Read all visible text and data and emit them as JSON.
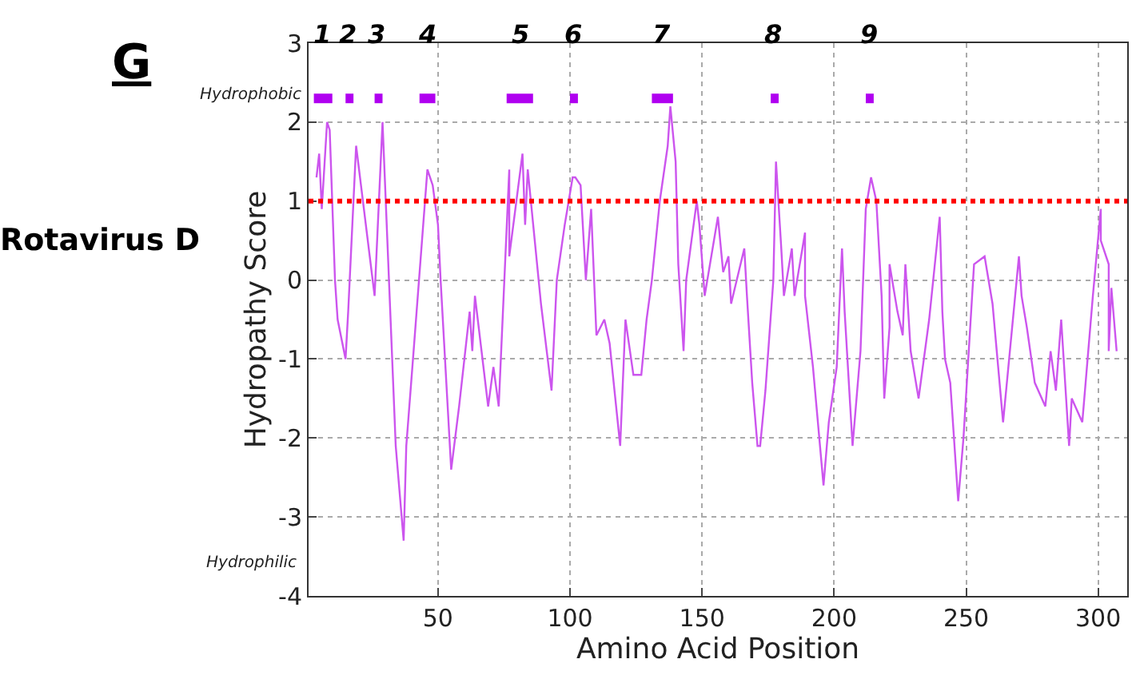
{
  "chart_data": {
    "type": "line",
    "title": "Rotavirus D",
    "xlabel": "Amino Acid Position",
    "ylabel": "Hydropathy Score",
    "annotations": [
      "G",
      "Hydrophobic",
      "Hydrophilic",
      {
        "text": "1",
        "x": 6,
        "y": 2.3
      },
      {
        "text": "2",
        "x": 16,
        "y": 2.3
      },
      {
        "text": "3",
        "x": 27,
        "y": 2.3
      },
      {
        "text": "4",
        "x": 46,
        "y": 2.3
      },
      {
        "text": "5",
        "x": 81,
        "y": 2.3
      },
      {
        "text": "6",
        "x": 101,
        "y": 2.3
      },
      {
        "text": "7",
        "x": 135,
        "y": 2.3
      },
      {
        "text": "8",
        "x": 177,
        "y": 2.3
      },
      {
        "text": "9",
        "x": 213,
        "y": 2.3
      }
    ],
    "series": [
      {
        "color": "#cc55ee",
        "x": [
          4,
          5,
          6,
          8,
          9,
          11,
          12,
          15,
          16,
          19,
          26,
          29,
          34,
          37,
          38,
          41,
          46,
          48,
          50,
          51,
          55,
          58,
          62,
          63,
          64,
          69,
          71,
          73,
          77,
          77,
          82,
          83,
          84,
          89,
          93,
          95,
          98,
          101,
          102,
          104,
          106,
          108,
          110,
          113,
          115,
          119,
          121,
          124,
          127,
          129,
          131,
          134,
          137,
          138,
          140,
          141,
          143,
          144,
          148,
          149,
          151,
          156,
          158,
          160,
          161,
          166,
          167,
          169,
          171,
          172,
          174,
          177,
          178,
          180,
          181,
          184,
          185,
          189,
          189,
          192,
          196,
          198,
          201,
          203,
          204,
          207,
          210,
          212,
          214,
          216,
          218,
          219,
          221,
          221,
          224,
          226,
          227,
          229,
          232,
          236,
          240,
          241,
          242,
          244,
          247,
          249,
          251,
          253,
          257,
          258,
          260,
          264,
          266,
          270,
          271,
          273,
          276,
          280,
          282,
          284,
          286,
          289,
          290,
          294,
          296,
          298,
          301,
          301,
          304,
          304,
          305,
          307
        ],
        "values": [
          1.3,
          1.6,
          0.9,
          2.0,
          1.9,
          0.0,
          -0.5,
          -1.0,
          -0.4,
          1.7,
          -0.2,
          2.0,
          -2.1,
          -3.3,
          -2.1,
          -0.8,
          1.4,
          1.2,
          0.7,
          0.0,
          -2.4,
          -1.6,
          -0.4,
          -0.9,
          -0.2,
          -1.6,
          -1.1,
          -1.6,
          1.4,
          0.3,
          1.6,
          0.7,
          1.4,
          -0.3,
          -1.4,
          0.0,
          0.7,
          1.3,
          1.3,
          1.2,
          0.0,
          0.9,
          -0.7,
          -0.5,
          -0.8,
          -2.1,
          -0.5,
          -1.2,
          -1.2,
          -0.5,
          0.0,
          1.0,
          1.7,
          2.2,
          1.5,
          0.2,
          -0.9,
          0.0,
          1.0,
          0.7,
          -0.2,
          0.8,
          0.1,
          0.3,
          -0.3,
          0.4,
          -0.2,
          -1.3,
          -2.1,
          -2.1,
          -1.4,
          0.0,
          1.5,
          0.4,
          -0.2,
          0.4,
          -0.2,
          0.6,
          -0.2,
          -1.1,
          -2.6,
          -1.8,
          -1.1,
          0.4,
          -0.4,
          -2.1,
          -0.9,
          0.9,
          1.3,
          1.0,
          -0.2,
          -1.5,
          -0.6,
          0.2,
          -0.4,
          -0.7,
          0.2,
          -0.9,
          -1.5,
          -0.5,
          0.8,
          -0.4,
          -1.0,
          -1.3,
          -2.8,
          -2.0,
          -0.9,
          0.2,
          0.3,
          0.1,
          -0.3,
          -1.8,
          -1.1,
          0.3,
          -0.2,
          -0.6,
          -1.3,
          -1.6,
          -0.9,
          -1.4,
          -0.5,
          -2.1,
          -1.5,
          -1.8,
          -1.0,
          -0.2,
          0.9,
          0.5,
          0.2,
          -0.9,
          -0.1,
          -0.9
        ]
      },
      {
        "color": "#b000f0",
        "x": [
          3,
          10,
          null,
          15,
          18,
          null,
          26,
          29,
          null,
          43,
          49,
          null,
          76,
          86,
          null,
          100,
          103,
          null,
          131,
          139,
          null,
          176,
          179,
          null,
          212,
          215
        ],
        "values": [
          2.3,
          2.3,
          null,
          2.3,
          2.3,
          null,
          2.3,
          2.3,
          null,
          2.3,
          2.3,
          null,
          2.3,
          2.3,
          null,
          2.3,
          2.3,
          null,
          2.3,
          2.3,
          null,
          2.3,
          2.3,
          null,
          2.3,
          2.3
        ]
      }
    ],
    "xlim": [
      1,
      311
    ],
    "ylim": [
      -4,
      3
    ],
    "xticks": [
      50,
      100,
      150,
      200,
      250,
      300
    ],
    "yticks": [
      3,
      2,
      1,
      0,
      -1,
      -2,
      -3,
      -4
    ],
    "ref_lines": [
      {
        "axis": "y",
        "value": 1,
        "color": "#ff0000",
        "line_style": "dotted"
      }
    ],
    "grid": true
  }
}
